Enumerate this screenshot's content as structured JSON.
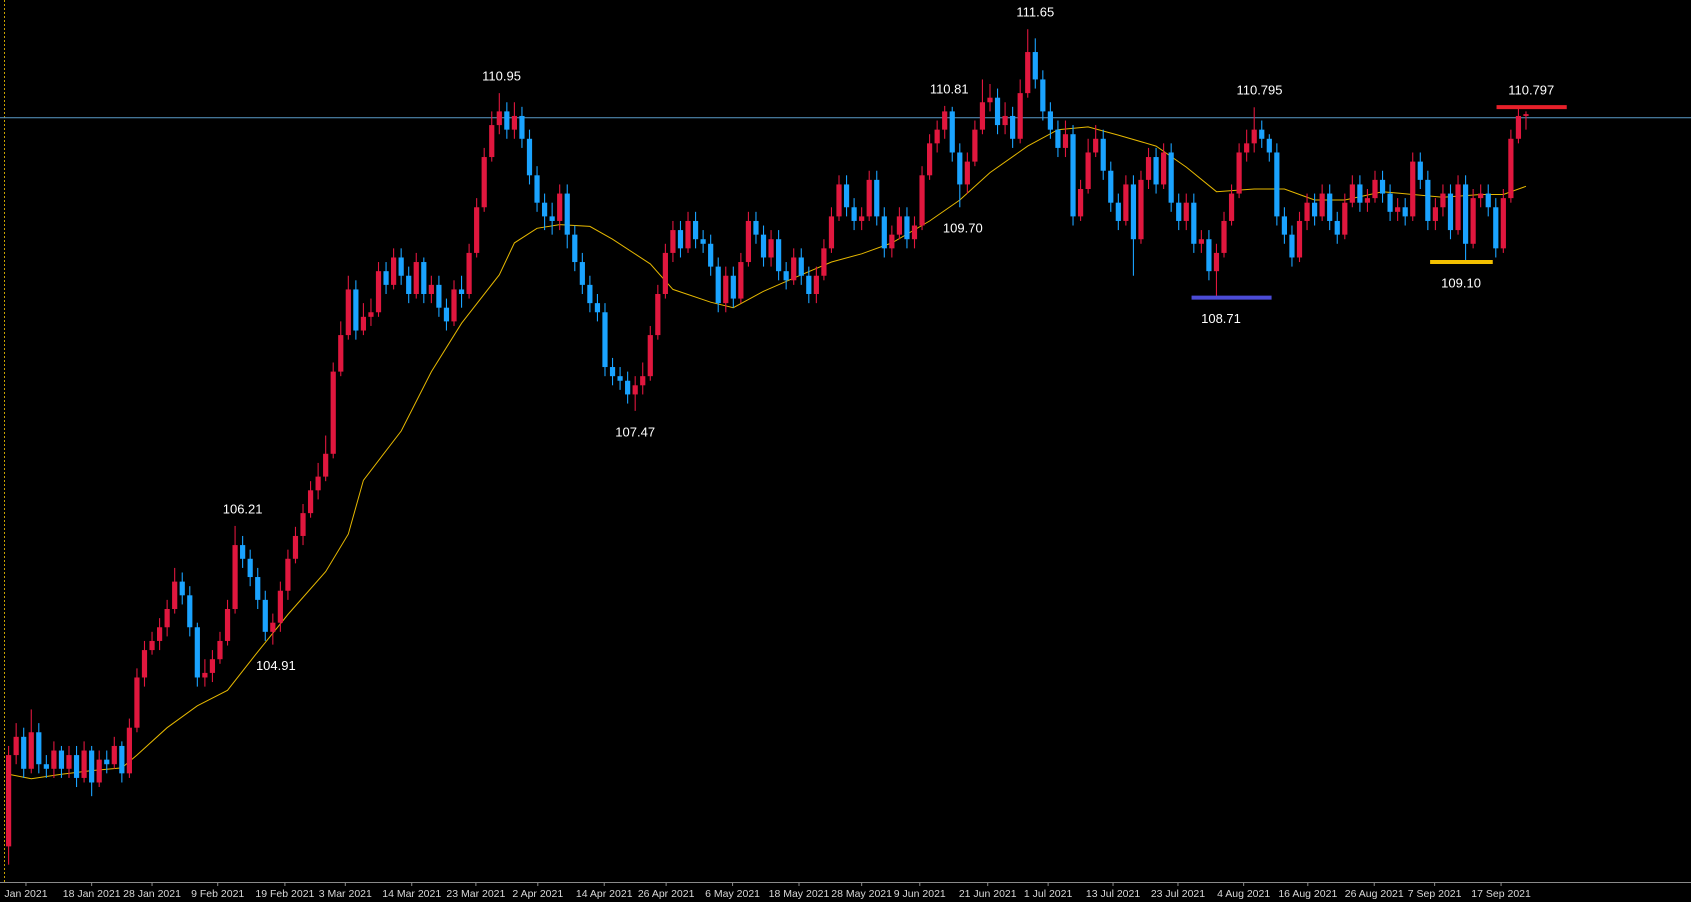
{
  "chart_data": {
    "type": "candlestick",
    "up_color": "#e0173e",
    "down_color": "#1aa3ff",
    "xlim": [
      -1.14,
      222.86
    ],
    "ylim": [
      102.31,
      111.97
    ],
    "xticks": [
      {
        "value": 2.3,
        "label": "Jan 2021"
      },
      {
        "value": 11,
        "label": "18 Jan 2021"
      },
      {
        "value": 19,
        "label": "28 Jan 2021"
      },
      {
        "value": 27.7,
        "label": "9 Feb 2021"
      },
      {
        "value": 36.6,
        "label": "19 Feb 2021"
      },
      {
        "value": 44.6,
        "label": "3 Mar 2021"
      },
      {
        "value": 53.4,
        "label": "14 Mar 2021"
      },
      {
        "value": 61.9,
        "label": "23 Mar 2021"
      },
      {
        "value": 70.1,
        "label": "2 Apr 2021"
      },
      {
        "value": 78.9,
        "label": "14 Apr 2021"
      },
      {
        "value": 87.1,
        "label": "26 Apr 2021"
      },
      {
        "value": 95.9,
        "label": "6 May 2021"
      },
      {
        "value": 104.7,
        "label": "18 May 2021"
      },
      {
        "value": 113,
        "label": "28 May 2021"
      },
      {
        "value": 120.7,
        "label": "9 Jun 2021"
      },
      {
        "value": 129.7,
        "label": "21 Jun 2021"
      },
      {
        "value": 137.7,
        "label": "1 Jul 2021"
      },
      {
        "value": 146.3,
        "label": "13 Jul 2021"
      },
      {
        "value": 154.9,
        "label": "23 Jul 2021"
      },
      {
        "value": 163.6,
        "label": "4 Aug 2021"
      },
      {
        "value": 172.1,
        "label": "16 Aug 2021"
      },
      {
        "value": 180.9,
        "label": "26 Aug 2021"
      },
      {
        "value": 188.9,
        "label": "7 Sep 2021"
      },
      {
        "value": 197.7,
        "label": "17 Sep 2021"
      }
    ],
    "open": [
      102.7,
      103.7,
      103.9,
      103.55,
      103.95,
      103.6,
      103.55,
      103.75,
      103.55,
      103.7,
      103.45,
      103.75,
      103.4,
      103.65,
      103.6,
      103.8,
      103.5,
      104.0,
      104.55,
      104.85,
      104.95,
      105.1,
      105.3,
      105.6,
      105.45,
      105.1,
      104.55,
      104.6,
      104.75,
      104.95,
      105.3,
      106.0,
      105.85,
      105.65,
      105.4,
      105.05,
      105.15,
      105.5,
      105.85,
      106.1,
      106.35,
      106.6,
      106.75,
      107.0,
      107.9,
      108.3,
      108.8,
      108.35,
      108.5,
      108.55,
      109.0,
      108.85,
      109.15,
      108.95,
      108.75,
      109.1,
      108.75,
      108.85,
      108.6,
      108.45,
      108.8,
      108.75,
      109.2,
      109.7,
      110.25,
      110.6,
      110.75,
      110.55,
      110.7,
      110.45,
      110.05,
      109.75,
      109.6,
      109.55,
      109.85,
      109.4,
      109.1,
      108.85,
      108.65,
      108.55,
      107.95,
      107.85,
      107.8,
      107.65,
      107.75,
      107.85,
      108.3,
      108.75,
      109.2,
      109.45,
      109.25,
      109.55,
      109.35,
      109.3,
      109.05,
      108.65,
      108.95,
      108.7,
      109.1,
      109.55,
      109.4,
      109.15,
      109.35,
      109.0,
      108.9,
      109.15,
      108.95,
      108.75,
      108.95,
      109.25,
      109.6,
      109.95,
      109.7,
      109.55,
      109.6,
      110.0,
      109.6,
      109.25,
      109.4,
      109.6,
      109.35,
      109.5,
      110.05,
      110.4,
      110.55,
      110.75,
      110.3,
      109.95,
      110.2,
      110.55,
      110.85,
      110.9,
      110.6,
      110.7,
      110.45,
      110.95,
      111.4,
      111.1,
      110.75,
      110.55,
      110.35,
      110.5,
      109.6,
      109.9,
      110.3,
      110.45,
      110.1,
      109.75,
      109.55,
      109.95,
      109.35,
      110.0,
      110.25,
      109.95,
      110.3,
      109.75,
      109.55,
      109.75,
      109.3,
      109.35,
      109.0,
      109.2,
      109.55,
      109.85,
      110.3,
      110.4,
      110.55,
      110.45,
      110.3,
      109.6,
      109.4,
      109.15,
      109.55,
      109.75,
      109.6,
      109.85,
      109.55,
      109.4,
      109.75,
      109.95,
      109.75,
      109.8,
      110.0,
      109.85,
      109.65,
      109.7,
      109.6,
      110.2,
      110.0,
      109.55,
      109.7,
      109.85,
      109.45,
      109.95,
      109.3,
      109.8,
      109.85,
      109.7,
      109.25,
      109.8,
      110.45,
      110.7
    ],
    "high": [
      103.8,
      104.05,
      104.0,
      104.2,
      104.05,
      103.7,
      103.85,
      103.8,
      103.8,
      103.8,
      103.85,
      103.8,
      103.75,
      103.75,
      103.9,
      103.85,
      104.1,
      104.65,
      104.95,
      105.05,
      105.2,
      105.4,
      105.75,
      105.7,
      105.55,
      105.15,
      104.75,
      104.85,
      105.05,
      105.4,
      106.21,
      106.1,
      105.95,
      105.75,
      105.5,
      105.25,
      105.6,
      105.95,
      106.2,
      106.45,
      106.7,
      106.9,
      107.2,
      108.0,
      108.45,
      108.95,
      108.9,
      108.65,
      108.7,
      109.1,
      109.1,
      109.25,
      109.25,
      109.05,
      109.2,
      109.15,
      108.95,
      108.95,
      108.7,
      108.9,
      108.95,
      109.3,
      109.8,
      110.35,
      110.75,
      110.95,
      110.85,
      110.85,
      110.8,
      110.55,
      110.15,
      109.85,
      109.75,
      109.95,
      109.95,
      109.5,
      109.2,
      108.95,
      108.75,
      108.65,
      108.05,
      107.95,
      107.9,
      107.85,
      108.0,
      108.4,
      108.85,
      109.3,
      109.55,
      109.55,
      109.65,
      109.65,
      109.45,
      109.4,
      109.15,
      109.05,
      109.05,
      109.2,
      109.65,
      109.65,
      109.5,
      109.45,
      109.45,
      109.1,
      109.25,
      109.25,
      109.05,
      109.05,
      109.35,
      109.7,
      110.05,
      110.05,
      109.8,
      109.7,
      110.1,
      110.1,
      109.7,
      109.5,
      109.7,
      109.7,
      109.6,
      110.15,
      110.5,
      110.65,
      110.81,
      110.8,
      110.4,
      110.3,
      110.65,
      111.1,
      111.05,
      111.0,
      110.85,
      110.8,
      111.1,
      111.65,
      111.55,
      111.2,
      110.85,
      110.65,
      110.65,
      110.6,
      110.0,
      110.45,
      110.6,
      110.55,
      110.2,
      109.85,
      110.05,
      110.05,
      110.1,
      110.35,
      110.35,
      110.4,
      110.4,
      109.85,
      109.85,
      109.85,
      109.45,
      109.45,
      109.3,
      109.65,
      109.95,
      110.4,
      110.55,
      110.795,
      110.65,
      110.5,
      110.4,
      109.7,
      109.5,
      109.65,
      109.85,
      109.85,
      109.95,
      109.95,
      109.65,
      109.85,
      110.05,
      110.05,
      109.9,
      110.1,
      110.1,
      109.95,
      109.8,
      109.8,
      110.3,
      110.3,
      110.1,
      109.8,
      109.95,
      109.95,
      110.05,
      110.05,
      109.9,
      109.95,
      109.95,
      109.8,
      109.9,
      110.55,
      110.797,
      110.75
    ],
    "low": [
      102.5,
      103.6,
      103.45,
      103.5,
      103.5,
      103.45,
      103.45,
      103.45,
      103.45,
      103.35,
      103.4,
      103.25,
      103.35,
      103.5,
      103.55,
      103.4,
      103.45,
      103.95,
      104.45,
      104.8,
      104.85,
      105.0,
      105.25,
      105.35,
      105.0,
      104.45,
      104.45,
      104.5,
      104.7,
      104.9,
      105.25,
      105.75,
      105.55,
      105.3,
      104.95,
      104.91,
      105.05,
      105.4,
      105.8,
      106.0,
      106.3,
      106.5,
      106.7,
      106.95,
      107.85,
      108.25,
      108.25,
      108.3,
      108.4,
      108.5,
      108.75,
      108.8,
      108.85,
      108.65,
      108.7,
      108.65,
      108.65,
      108.5,
      108.35,
      108.4,
      108.6,
      108.7,
      109.15,
      109.65,
      110.2,
      110.5,
      110.45,
      110.45,
      110.35,
      109.95,
      109.65,
      109.45,
      109.4,
      109.45,
      109.25,
      109.0,
      108.75,
      108.55,
      108.45,
      107.85,
      107.75,
      107.7,
      107.55,
      107.47,
      107.65,
      107.8,
      108.25,
      108.7,
      109.1,
      109.15,
      109.2,
      109.25,
      109.2,
      108.95,
      108.55,
      108.55,
      108.6,
      108.65,
      109.05,
      109.3,
      109.05,
      109.05,
      108.9,
      108.8,
      108.85,
      108.85,
      108.65,
      108.65,
      108.9,
      109.2,
      109.55,
      109.6,
      109.45,
      109.45,
      109.55,
      109.5,
      109.15,
      109.15,
      109.35,
      109.25,
      109.25,
      109.45,
      110.0,
      110.3,
      110.45,
      110.2,
      109.7,
      109.85,
      110.15,
      110.5,
      110.75,
      110.5,
      110.5,
      110.35,
      110.4,
      110.9,
      111.0,
      110.65,
      110.45,
      110.25,
      110.25,
      109.5,
      109.55,
      109.85,
      110.25,
      110.0,
      109.65,
      109.45,
      109.5,
      108.95,
      109.3,
      109.9,
      109.85,
      109.9,
      109.65,
      109.45,
      109.45,
      109.2,
      109.2,
      108.9,
      108.71,
      109.15,
      109.5,
      109.8,
      110.2,
      110.3,
      110.35,
      110.2,
      109.5,
      109.3,
      109.05,
      109.1,
      109.45,
      109.5,
      109.55,
      109.45,
      109.3,
      109.35,
      109.7,
      109.65,
      109.65,
      109.75,
      109.75,
      109.55,
      109.55,
      109.5,
      109.55,
      109.9,
      109.45,
      109.45,
      109.6,
      109.35,
      109.4,
      109.1,
      109.25,
      109.7,
      109.6,
      109.15,
      109.2,
      109.75,
      110.4,
      110.55
    ],
    "close": [
      103.7,
      103.9,
      103.55,
      103.95,
      103.6,
      103.55,
      103.75,
      103.55,
      103.7,
      103.45,
      103.75,
      103.4,
      103.65,
      103.6,
      103.8,
      103.5,
      104.0,
      104.55,
      104.85,
      104.95,
      105.1,
      105.3,
      105.6,
      105.45,
      105.1,
      104.55,
      104.6,
      104.75,
      104.95,
      105.3,
      106.0,
      105.85,
      105.65,
      105.4,
      105.05,
      105.15,
      105.5,
      105.85,
      106.1,
      106.35,
      106.6,
      106.75,
      107.0,
      107.9,
      108.3,
      108.8,
      108.35,
      108.5,
      108.55,
      109.0,
      108.85,
      109.15,
      108.95,
      108.75,
      109.1,
      108.75,
      108.85,
      108.6,
      108.45,
      108.8,
      108.75,
      109.2,
      109.7,
      110.25,
      110.6,
      110.75,
      110.55,
      110.7,
      110.45,
      110.05,
      109.75,
      109.6,
      109.55,
      109.85,
      109.4,
      109.1,
      108.85,
      108.65,
      108.55,
      107.95,
      107.85,
      107.8,
      107.65,
      107.75,
      107.85,
      108.3,
      108.75,
      109.2,
      109.45,
      109.25,
      109.55,
      109.35,
      109.3,
      109.05,
      108.65,
      108.95,
      108.7,
      109.1,
      109.55,
      109.4,
      109.15,
      109.35,
      109.0,
      108.9,
      109.15,
      108.95,
      108.75,
      108.95,
      109.25,
      109.6,
      109.95,
      109.7,
      109.55,
      109.6,
      110.0,
      109.6,
      109.25,
      109.4,
      109.6,
      109.35,
      109.5,
      110.05,
      110.4,
      110.55,
      110.75,
      110.3,
      109.95,
      110.2,
      110.55,
      110.85,
      110.9,
      110.6,
      110.7,
      110.45,
      110.95,
      111.4,
      111.1,
      110.75,
      110.55,
      110.35,
      110.5,
      109.6,
      109.9,
      110.3,
      110.45,
      110.1,
      109.75,
      109.55,
      109.95,
      109.35,
      110.0,
      110.25,
      109.95,
      110.3,
      109.75,
      109.55,
      109.75,
      109.3,
      109.35,
      109.0,
      109.2,
      109.55,
      109.85,
      110.3,
      110.4,
      110.55,
      110.45,
      110.3,
      109.6,
      109.4,
      109.15,
      109.55,
      109.75,
      109.6,
      109.85,
      109.55,
      109.4,
      109.75,
      109.95,
      109.75,
      109.8,
      110.0,
      109.85,
      109.65,
      109.7,
      109.6,
      110.2,
      110.0,
      109.55,
      109.7,
      109.85,
      109.45,
      109.95,
      109.3,
      109.8,
      109.85,
      109.7,
      109.25,
      109.8,
      110.45,
      110.7,
      110.72
    ],
    "ma": {
      "color": "#e6b800",
      "x": [
        0,
        3,
        7,
        11,
        15,
        17,
        21,
        25,
        29,
        33,
        37,
        42,
        45,
        47,
        52,
        56,
        60,
        65,
        67,
        70,
        73,
        77,
        80,
        85,
        88,
        93,
        96,
        100,
        105,
        109,
        113,
        117,
        122,
        126,
        130,
        135,
        139,
        143,
        147,
        152,
        156,
        160,
        165,
        169,
        173,
        177,
        182,
        186,
        190,
        195,
        198,
        201
      ],
      "values": [
        103.49,
        103.44,
        103.49,
        103.53,
        103.56,
        103.7,
        104.0,
        104.24,
        104.41,
        104.83,
        105.24,
        105.71,
        106.12,
        106.71,
        107.25,
        107.9,
        108.43,
        108.96,
        109.31,
        109.47,
        109.51,
        109.49,
        109.35,
        109.08,
        108.8,
        108.66,
        108.6,
        108.78,
        108.96,
        109.1,
        109.19,
        109.31,
        109.55,
        109.78,
        110.08,
        110.37,
        110.55,
        110.58,
        110.49,
        110.37,
        110.14,
        109.87,
        109.9,
        109.9,
        109.78,
        109.78,
        109.87,
        109.84,
        109.81,
        109.84,
        109.84,
        109.93
      ]
    },
    "price_line": {
      "value": 110.68,
      "color": "#5b9bc8"
    },
    "levels": [
      {
        "value": 108.71,
        "color": "#4b4bd6",
        "from": 156.7,
        "to": 167.3
      },
      {
        "value": 109.1,
        "color": "#f2c000",
        "from": 188.3,
        "to": 196.6
      },
      {
        "value": 110.797,
        "color": "#e8202a",
        "from": 197.1,
        "to": 206.4
      }
    ],
    "annotations": [
      {
        "label": "106.21",
        "value": 106.21,
        "at": 31,
        "side": "above"
      },
      {
        "label": "104.91",
        "value": 104.91,
        "at": 35.4,
        "side": "below"
      },
      {
        "label": "110.95",
        "value": 110.95,
        "at": 65.3,
        "side": "above"
      },
      {
        "label": "107.47",
        "value": 107.47,
        "at": 83,
        "side": "below"
      },
      {
        "label": "110.81",
        "value": 110.81,
        "at": 124.6,
        "side": "above"
      },
      {
        "label": "109.70",
        "value": 109.7,
        "at": 126.4,
        "side": "below"
      },
      {
        "label": "111.65",
        "value": 111.65,
        "at": 136,
        "side": "above"
      },
      {
        "label": "108.71",
        "value": 108.71,
        "at": 160.6,
        "side": "below"
      },
      {
        "label": "110.795",
        "value": 110.795,
        "at": 165.7,
        "side": "above"
      },
      {
        "label": "109.10",
        "value": 109.1,
        "at": 192.4,
        "side": "below"
      },
      {
        "label": "110.797",
        "value": 110.797,
        "at": 201.7,
        "side": "above"
      }
    ]
  }
}
